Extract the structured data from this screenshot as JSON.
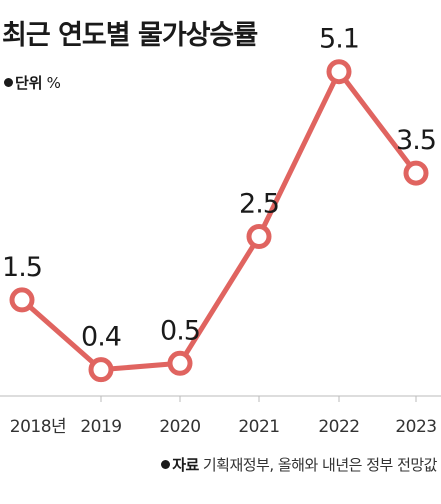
{
  "title": "최근 연도별 물가상승률",
  "unit": {
    "label": "단위",
    "symbol": "%"
  },
  "source": {
    "label": "자료",
    "text": "기획재정부, 올해와 내년은 정부 전망값"
  },
  "colors": {
    "line": "#e06460",
    "marker_fill": "#ffffff",
    "text": "#1a1a1a",
    "axis": "#bbbbbb"
  },
  "chart_data": {
    "type": "line",
    "categories": [
      "2018년",
      "2019",
      "2020",
      "2021",
      "2022",
      "2023"
    ],
    "values": [
      1.5,
      0.4,
      0.5,
      2.5,
      5.1,
      3.5
    ],
    "value_labels": [
      "1.5",
      "0.4",
      "0.5",
      "2.5",
      "5.1",
      "3.5"
    ],
    "ylim": [
      0,
      5.6
    ],
    "grid": false,
    "legend": "none"
  }
}
